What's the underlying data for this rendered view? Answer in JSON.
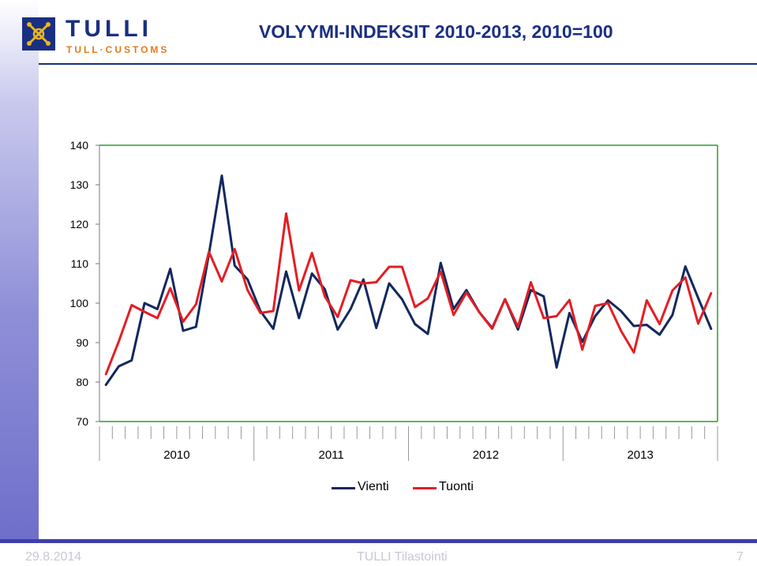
{
  "header": {
    "logo_word": "TULLI",
    "logo_sub": "TULL·CUSTOMS",
    "title": "VOLYYMI-INDEKSIT 2010-2013, 2010=100"
  },
  "footer": {
    "date": "29.8.2014",
    "center": "TULLI Tilastointi",
    "page": "7"
  },
  "colors": {
    "brand": "#1a2f82",
    "vienti": "#13285e",
    "tuonti": "#e31e24",
    "plot_border": "#2e9b2e"
  },
  "chart_data": {
    "type": "line",
    "title": "",
    "xlabel": "",
    "ylabel": "",
    "ylim": [
      70,
      140
    ],
    "yticks": [
      70,
      80,
      90,
      100,
      110,
      120,
      130,
      140
    ],
    "year_labels": [
      "2010",
      "2011",
      "2012",
      "2013"
    ],
    "months_per_year": 12,
    "grid": false,
    "legend_position": "bottom",
    "series": [
      {
        "name": "Vienti",
        "color": "#13285e",
        "values": [
          79.3,
          84,
          85.5,
          100,
          98.5,
          108.7,
          93,
          94,
          112.5,
          132.3,
          109.5,
          106,
          98,
          93.5,
          108,
          96.2,
          107.5,
          103.5,
          93.3,
          98.5,
          106,
          93.7,
          105,
          101,
          94.7,
          92.2,
          110.2,
          98.5,
          103.3,
          97.7,
          93.7,
          101,
          93.3,
          103.3,
          101.7,
          83.7,
          97.5,
          90.2,
          96.7,
          100.7,
          98,
          94.2,
          94.5,
          92,
          97,
          109.3,
          101.3,
          93.5
        ]
      },
      {
        "name": "Tuonti",
        "color": "#e31e24",
        "values": [
          82,
          90.3,
          99.5,
          97.8,
          96.2,
          103.8,
          95.3,
          99.7,
          113,
          105.5,
          113.7,
          103.3,
          97.5,
          98,
          122.7,
          103.2,
          112.7,
          101.7,
          96.5,
          105.8,
          105,
          105.3,
          109.2,
          109.2,
          99,
          101.2,
          108,
          97,
          102.7,
          97.7,
          93.5,
          101,
          94,
          105.3,
          96.2,
          96.7,
          100.8,
          88.2,
          99.3,
          100,
          93,
          87.5,
          100.7,
          94.7,
          103.2,
          106.5,
          94.8,
          102.5
        ]
      }
    ]
  }
}
